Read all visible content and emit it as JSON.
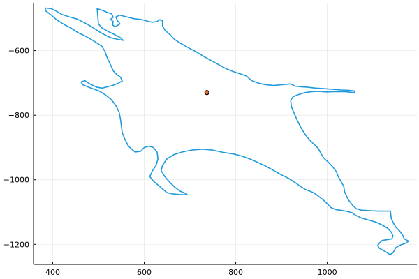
{
  "chart_data": {
    "type": "line",
    "title": "",
    "xlabel": "",
    "ylabel": "",
    "xlim": [
      358,
      1196
    ],
    "ylim": [
      -1262,
      -454
    ],
    "x_ticks": [
      400,
      600,
      800,
      1000
    ],
    "x_tick_labels": [
      "400",
      "600",
      "800",
      "1000"
    ],
    "y_ticks": [
      -600,
      -800,
      -1000,
      -1200
    ],
    "y_tick_labels": [
      "−600",
      "−800",
      "−1000",
      "−1200"
    ],
    "grid": true,
    "legend": "none",
    "colors": {
      "outline": "#1f9bdb",
      "marker_fill": "#e26a2c",
      "marker_edge": "#000000"
    },
    "series": [
      {
        "type": "line",
        "points": [
          [
            384,
            -468
          ],
          [
            397,
            -470
          ],
          [
            408,
            -478
          ],
          [
            420,
            -488
          ],
          [
            437,
            -496
          ],
          [
            453,
            -502
          ],
          [
            470,
            -514
          ],
          [
            485,
            -526
          ],
          [
            502,
            -542
          ],
          [
            515,
            -552
          ],
          [
            528,
            -561
          ],
          [
            542,
            -565
          ],
          [
            554,
            -568
          ],
          [
            548,
            -560
          ],
          [
            532,
            -548
          ],
          [
            520,
            -540
          ],
          [
            508,
            -530
          ],
          [
            500,
            -518
          ],
          [
            497,
            -470
          ],
          [
            510,
            -476
          ],
          [
            520,
            -482
          ],
          [
            529,
            -486
          ],
          [
            532,
            -497
          ],
          [
            526,
            -503
          ],
          [
            532,
            -510
          ],
          [
            531,
            -521
          ],
          [
            537,
            -526
          ],
          [
            547,
            -517
          ],
          [
            541,
            -506
          ],
          [
            538,
            -496
          ],
          [
            546,
            -490
          ],
          [
            555,
            -493
          ],
          [
            566,
            -497
          ],
          [
            578,
            -501
          ],
          [
            595,
            -504
          ],
          [
            610,
            -510
          ],
          [
            618,
            -512
          ],
          [
            628,
            -510
          ],
          [
            634,
            -504
          ],
          [
            640,
            -508
          ],
          [
            640,
            -524
          ],
          [
            646,
            -538
          ],
          [
            656,
            -550
          ],
          [
            666,
            -565
          ],
          [
            680,
            -578
          ],
          [
            698,
            -592
          ],
          [
            714,
            -604
          ],
          [
            730,
            -618
          ],
          [
            748,
            -632
          ],
          [
            766,
            -646
          ],
          [
            782,
            -658
          ],
          [
            797,
            -666
          ],
          [
            812,
            -673
          ],
          [
            823,
            -678
          ],
          [
            834,
            -692
          ],
          [
            848,
            -700
          ],
          [
            863,
            -705
          ],
          [
            883,
            -708
          ],
          [
            905,
            -705
          ],
          [
            920,
            -703
          ],
          [
            930,
            -710
          ],
          [
            943,
            -712
          ],
          [
            956,
            -713
          ],
          [
            974,
            -716
          ],
          [
            995,
            -718
          ],
          [
            1012,
            -720
          ],
          [
            1030,
            -722
          ],
          [
            1048,
            -723
          ],
          [
            1060,
            -725
          ],
          [
            1059,
            -730
          ],
          [
            1038,
            -727
          ],
          [
            1015,
            -727
          ],
          [
            998,
            -728
          ],
          [
            982,
            -726
          ],
          [
            966,
            -727
          ],
          [
            951,
            -730
          ],
          [
            935,
            -737
          ],
          [
            925,
            -743
          ],
          [
            920,
            -754
          ],
          [
            922,
            -775
          ],
          [
            928,
            -795
          ],
          [
            934,
            -815
          ],
          [
            943,
            -840
          ],
          [
            953,
            -862
          ],
          [
            961,
            -876
          ],
          [
            971,
            -890
          ],
          [
            980,
            -902
          ],
          [
            986,
            -918
          ],
          [
            992,
            -932
          ],
          [
            1002,
            -945
          ],
          [
            1012,
            -960
          ],
          [
            1020,
            -975
          ],
          [
            1024,
            -990
          ],
          [
            1030,
            -1005
          ],
          [
            1036,
            -1020
          ],
          [
            1038,
            -1037
          ],
          [
            1046,
            -1062
          ],
          [
            1056,
            -1080
          ],
          [
            1064,
            -1090
          ],
          [
            1074,
            -1094
          ],
          [
            1086,
            -1095
          ],
          [
            1097,
            -1096
          ],
          [
            1112,
            -1097
          ],
          [
            1125,
            -1097
          ],
          [
            1138,
            -1097
          ],
          [
            1140,
            -1120
          ],
          [
            1145,
            -1135
          ],
          [
            1150,
            -1147
          ],
          [
            1158,
            -1158
          ],
          [
            1165,
            -1172
          ],
          [
            1168,
            -1183
          ],
          [
            1178,
            -1190
          ],
          [
            1172,
            -1196
          ],
          [
            1160,
            -1202
          ],
          [
            1150,
            -1210
          ],
          [
            1144,
            -1226
          ],
          [
            1137,
            -1232
          ],
          [
            1131,
            -1226
          ],
          [
            1124,
            -1220
          ],
          [
            1114,
            -1212
          ],
          [
            1110,
            -1204
          ],
          [
            1114,
            -1196
          ],
          [
            1120,
            -1188
          ],
          [
            1132,
            -1185
          ],
          [
            1141,
            -1183
          ],
          [
            1144,
            -1174
          ],
          [
            1140,
            -1162
          ],
          [
            1132,
            -1150
          ],
          [
            1120,
            -1140
          ],
          [
            1108,
            -1132
          ],
          [
            1096,
            -1127
          ],
          [
            1084,
            -1122
          ],
          [
            1074,
            -1118
          ],
          [
            1062,
            -1110
          ],
          [
            1054,
            -1102
          ],
          [
            1044,
            -1098
          ],
          [
            1032,
            -1095
          ],
          [
            1018,
            -1092
          ],
          [
            1008,
            -1086
          ],
          [
            1000,
            -1074
          ],
          [
            991,
            -1062
          ],
          [
            980,
            -1050
          ],
          [
            970,
            -1040
          ],
          [
            960,
            -1034
          ],
          [
            952,
            -1030
          ],
          [
            941,
            -1020
          ],
          [
            929,
            -1008
          ],
          [
            916,
            -996
          ],
          [
            900,
            -985
          ],
          [
            884,
            -972
          ],
          [
            866,
            -958
          ],
          [
            848,
            -946
          ],
          [
            830,
            -935
          ],
          [
            812,
            -926
          ],
          [
            795,
            -920
          ],
          [
            772,
            -915
          ],
          [
            749,
            -908
          ],
          [
            727,
            -905
          ],
          [
            704,
            -908
          ],
          [
            683,
            -914
          ],
          [
            665,
            -922
          ],
          [
            650,
            -935
          ],
          [
            640,
            -955
          ],
          [
            637,
            -972
          ],
          [
            645,
            -990
          ],
          [
            654,
            -1005
          ],
          [
            666,
            -1022
          ],
          [
            678,
            -1035
          ],
          [
            690,
            -1042
          ],
          [
            694,
            -1046
          ],
          [
            680,
            -1046
          ],
          [
            663,
            -1044
          ],
          [
            650,
            -1040
          ],
          [
            640,
            -1028
          ],
          [
            630,
            -1016
          ],
          [
            620,
            -1004
          ],
          [
            612,
            -990
          ],
          [
            618,
            -972
          ],
          [
            626,
            -955
          ],
          [
            630,
            -935
          ],
          [
            628,
            -914
          ],
          [
            620,
            -900
          ],
          [
            610,
            -896
          ],
          [
            600,
            -900
          ],
          [
            592,
            -912
          ],
          [
            580,
            -914
          ],
          [
            573,
            -906
          ],
          [
            565,
            -895
          ],
          [
            558,
            -875
          ],
          [
            552,
            -855
          ],
          [
            550,
            -834
          ],
          [
            548,
            -812
          ],
          [
            545,
            -790
          ],
          [
            538,
            -770
          ],
          [
            528,
            -752
          ],
          [
            516,
            -738
          ],
          [
            503,
            -726
          ],
          [
            488,
            -718
          ],
          [
            476,
            -712
          ],
          [
            466,
            -706
          ],
          [
            462,
            -697
          ],
          [
            470,
            -693
          ],
          [
            482,
            -704
          ],
          [
            496,
            -713
          ],
          [
            508,
            -716
          ],
          [
            520,
            -712
          ],
          [
            530,
            -708
          ],
          [
            542,
            -702
          ],
          [
            552,
            -694
          ],
          [
            548,
            -682
          ],
          [
            540,
            -674
          ],
          [
            532,
            -662
          ],
          [
            525,
            -640
          ],
          [
            519,
            -622
          ],
          [
            514,
            -602
          ],
          [
            507,
            -586
          ],
          [
            496,
            -576
          ],
          [
            484,
            -565
          ],
          [
            470,
            -554
          ],
          [
            456,
            -545
          ],
          [
            440,
            -530
          ],
          [
            426,
            -520
          ],
          [
            410,
            -506
          ],
          [
            395,
            -488
          ],
          [
            384,
            -476
          ]
        ]
      },
      {
        "type": "scatter",
        "points": [
          [
            737,
            -730
          ]
        ]
      }
    ]
  }
}
